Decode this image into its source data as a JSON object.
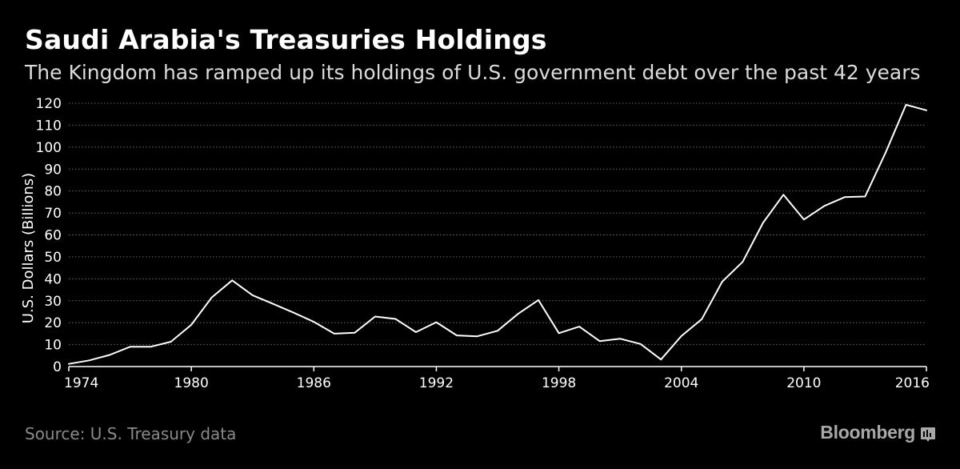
{
  "header": {
    "title": "Saudi Arabia's Treasuries Holdings",
    "subtitle": "The Kingdom has ramped up its holdings of U.S. government debt over the past 42 years"
  },
  "footer": {
    "source": "Source: U.S. Treasury data",
    "brand": "Bloomberg",
    "brand_icon": "bloomberg-bars-icon"
  },
  "colors": {
    "background": "#000000",
    "line": "#ffffff",
    "grid": "#6a6a6a",
    "text": "#ffffff",
    "muted": "#8a8a8a"
  },
  "chart_data": {
    "type": "line",
    "title": "Saudi Arabia's Treasuries Holdings",
    "xlabel": "",
    "ylabel": "U.S. Dollars (Billions)",
    "xlim": [
      1974,
      2016
    ],
    "ylim": [
      0,
      120
    ],
    "grid": true,
    "x_ticks": [
      1974,
      1980,
      1986,
      1992,
      1998,
      2004,
      2010,
      2016
    ],
    "y_ticks": [
      0,
      10,
      20,
      30,
      40,
      50,
      60,
      70,
      80,
      90,
      100,
      110,
      120
    ],
    "series": [
      {
        "name": "Saudi Arabia Treasuries holdings",
        "x": [
          1974,
          1975,
          1976,
          1977,
          1978,
          1979,
          1980,
          1981,
          1982,
          1983,
          1984,
          1985,
          1986,
          1987,
          1988,
          1989,
          1990,
          1991,
          1992,
          1993,
          1994,
          1995,
          1996,
          1997,
          1998,
          1999,
          2000,
          2001,
          2002,
          2003,
          2004,
          2005,
          2006,
          2007,
          2008,
          2009,
          2010,
          2011,
          2012,
          2013,
          2014,
          2015,
          2016
        ],
        "values": [
          1.2,
          2.8,
          5.3,
          9.0,
          9.0,
          11.3,
          19.0,
          31.5,
          39.3,
          32.5,
          28.6,
          24.6,
          20.4,
          15.0,
          15.4,
          22.8,
          21.7,
          15.7,
          20.2,
          14.2,
          13.8,
          16.3,
          24.0,
          30.3,
          15.2,
          18.2,
          11.6,
          12.7,
          10.3,
          3.2,
          13.9,
          21.6,
          38.7,
          47.7,
          65.5,
          78.3,
          67.0,
          73.2,
          77.2,
          77.5,
          97.5,
          119.3,
          116.8
        ]
      }
    ]
  }
}
